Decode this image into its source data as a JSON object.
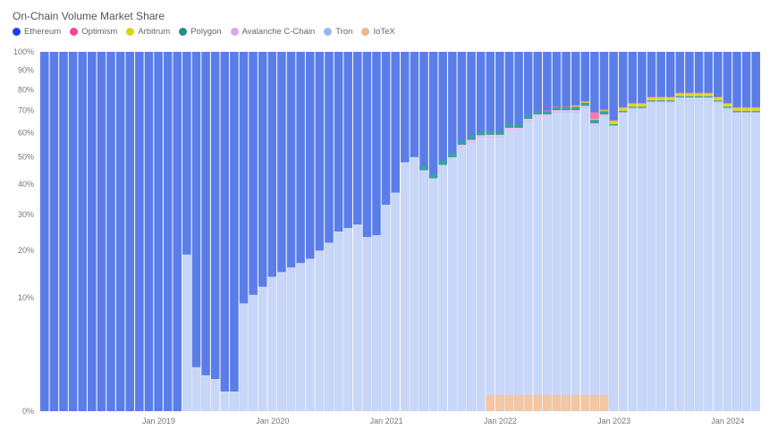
{
  "chart_data": {
    "type": "bar",
    "stacked": true,
    "title": "On-Chain Volume Market Share",
    "y_scale": "sqrt",
    "ylim": [
      0,
      100
    ],
    "y_ticks": [
      "0%",
      "10%",
      "20%",
      "30%",
      "40%",
      "50%",
      "60%",
      "70%",
      "80%",
      "90%",
      "100%"
    ],
    "x_ticks": [
      {
        "label": "Jan 2019",
        "month": "2019-01"
      },
      {
        "label": "Jan 2020",
        "month": "2020-01"
      },
      {
        "label": "Jan 2021",
        "month": "2021-01"
      },
      {
        "label": "Jan 2022",
        "month": "2022-01"
      },
      {
        "label": "Jan 2023",
        "month": "2023-01"
      },
      {
        "label": "Jan 2024",
        "month": "2024-01"
      }
    ],
    "grid": false,
    "legend_position": "top-left",
    "x": [
      "2018-01",
      "2018-02",
      "2018-03",
      "2018-04",
      "2018-05",
      "2018-06",
      "2018-07",
      "2018-08",
      "2018-09",
      "2018-10",
      "2018-11",
      "2018-12",
      "2019-01",
      "2019-02",
      "2019-03",
      "2019-04",
      "2019-05",
      "2019-06",
      "2019-07",
      "2019-08",
      "2019-09",
      "2019-10",
      "2019-11",
      "2019-12",
      "2020-01",
      "2020-02",
      "2020-03",
      "2020-04",
      "2020-05",
      "2020-06",
      "2020-07",
      "2020-08",
      "2020-09",
      "2020-10",
      "2020-11",
      "2020-12",
      "2021-01",
      "2021-02",
      "2021-03",
      "2021-04",
      "2021-05",
      "2021-06",
      "2021-07",
      "2021-08",
      "2021-09",
      "2021-10",
      "2021-11",
      "2021-12",
      "2022-01",
      "2022-02",
      "2022-03",
      "2022-04",
      "2022-05",
      "2022-06",
      "2022-07",
      "2022-08",
      "2022-09",
      "2022-10",
      "2022-11",
      "2022-12",
      "2023-01",
      "2023-02",
      "2023-03",
      "2023-04",
      "2023-05",
      "2023-06",
      "2023-07",
      "2023-08",
      "2023-09",
      "2023-10",
      "2023-11",
      "2023-12",
      "2024-01",
      "2024-02",
      "2024-03",
      "2024-04"
    ],
    "series": [
      {
        "name": "IoTeX",
        "color": "#f0b48a",
        "bar_color": "#f3c7a3",
        "values": [
          0,
          0,
          0,
          0,
          0,
          0,
          0,
          0,
          0,
          0,
          0,
          0,
          0,
          0,
          0,
          0,
          0,
          0,
          0,
          0,
          0,
          0,
          0,
          0,
          0,
          0,
          0,
          0,
          0,
          0,
          0,
          0,
          0,
          0,
          0,
          0,
          0,
          0,
          0,
          0,
          0,
          0,
          0,
          0,
          0,
          0,
          0,
          0.2,
          0.2,
          0.2,
          0.2,
          0.2,
          0.2,
          0.2,
          0.2,
          0.2,
          0.2,
          0.2,
          0.2,
          0.2,
          0,
          0,
          0,
          0,
          0,
          0,
          0,
          0,
          0,
          0,
          0,
          0,
          0,
          0,
          0,
          0
        ]
      },
      {
        "name": "Tron",
        "color": "#9bb5f2",
        "bar_color": "#c8d7f8",
        "values": [
          0,
          0,
          0,
          0,
          0,
          0,
          0,
          0,
          0,
          0,
          0,
          0,
          0,
          0,
          0,
          19,
          1.5,
          1,
          0.8,
          0.3,
          0.3,
          9,
          10.5,
          12,
          14,
          15,
          16,
          17,
          18,
          20,
          22,
          25,
          26,
          27,
          23.5,
          24,
          33,
          37,
          48,
          50,
          45,
          42,
          47,
          50,
          54,
          56,
          58,
          58,
          58,
          61,
          61,
          65,
          67,
          67,
          69,
          69,
          69,
          71,
          63,
          67,
          63,
          69,
          71,
          71,
          74,
          74,
          74,
          76,
          76,
          76,
          76,
          74,
          71,
          69,
          69,
          69
        ]
      },
      {
        "name": "Avalanche C-Chain",
        "color": "#d8a6f0",
        "bar_color": "#e6c4f5",
        "values": [
          0,
          0,
          0,
          0,
          0,
          0,
          0,
          0,
          0,
          0,
          0,
          0,
          0,
          0,
          0,
          0,
          0,
          0,
          0,
          0,
          0,
          0,
          0,
          0,
          0,
          0,
          0,
          0,
          0,
          0,
          0,
          0,
          0,
          0,
          0,
          0,
          0,
          0,
          0,
          0,
          0,
          0,
          0,
          0,
          1,
          1,
          1,
          1,
          1,
          1,
          1,
          1,
          1,
          1,
          1,
          1,
          1,
          1,
          1,
          1,
          0.3,
          0.3,
          0.3,
          0.3,
          0.3,
          0.3,
          0.3,
          0.3,
          0.3,
          0.3,
          0.3,
          0.3,
          0.3,
          0.3,
          0.3,
          0.3
        ]
      },
      {
        "name": "Polygon",
        "color": "#2a8c84",
        "bar_color": "#3aa39a",
        "values": [
          0,
          0,
          0,
          0,
          0,
          0,
          0,
          0,
          0,
          0,
          0,
          0,
          0,
          0,
          0,
          0,
          0,
          0,
          0,
          0,
          0,
          0,
          0,
          0,
          0,
          0,
          0,
          0,
          0,
          0,
          0,
          0,
          0,
          0,
          0,
          0,
          0,
          0,
          0,
          0,
          1.5,
          1.5,
          1.5,
          1.5,
          1.5,
          1.5,
          1.5,
          1.5,
          1.5,
          1.5,
          1.5,
          1.5,
          1.5,
          1.5,
          1.5,
          1.5,
          1.5,
          1.5,
          1.5,
          1.5,
          0.5,
          0.5,
          0.5,
          0.5,
          0.5,
          0.5,
          0.5,
          0.5,
          0.5,
          0.5,
          0.5,
          0.5,
          0.5,
          0.5,
          0.5,
          0.5
        ]
      },
      {
        "name": "Arbitrum",
        "color": "#d6d619",
        "bar_color": "#dada2a",
        "values": [
          0,
          0,
          0,
          0,
          0,
          0,
          0,
          0,
          0,
          0,
          0,
          0,
          0,
          0,
          0,
          0,
          0,
          0,
          0,
          0,
          0,
          0,
          0,
          0,
          0,
          0,
          0,
          0,
          0,
          0,
          0,
          0,
          0,
          0,
          0,
          0,
          0,
          0,
          0,
          0,
          0,
          0,
          0,
          0,
          0,
          0,
          0,
          0,
          0,
          0,
          0,
          0,
          0,
          0,
          0,
          0,
          0.5,
          0.5,
          0.5,
          0.5,
          1.5,
          1.5,
          1.5,
          1.5,
          1.5,
          1.5,
          1.5,
          1.5,
          1.5,
          1.5,
          1.5,
          1.5,
          1.5,
          1.5,
          1.5,
          1.5
        ]
      },
      {
        "name": "Optimism",
        "color": "#f0449a",
        "bar_color": "#f27ab5",
        "values": [
          0,
          0,
          0,
          0,
          0,
          0,
          0,
          0,
          0,
          0,
          0,
          0,
          0,
          0,
          0,
          0,
          0,
          0,
          0,
          0,
          0,
          0,
          0,
          0,
          0,
          0,
          0,
          0,
          0,
          0,
          0,
          0,
          0,
          0,
          0,
          0,
          0,
          0,
          0,
          0,
          0,
          0,
          0,
          0,
          0,
          0,
          0,
          0,
          0,
          0,
          0,
          0,
          0,
          0.3,
          0.3,
          0.3,
          0.3,
          0.3,
          3,
          0.3,
          0.3,
          0.3,
          0.3,
          0.3,
          0.3,
          0.3,
          0.3,
          0.3,
          0.3,
          0.3,
          0.3,
          0.3,
          0.3,
          0.3,
          0.3,
          0.3
        ]
      },
      {
        "name": "Ethereum",
        "color": "#1a3ef0",
        "bar_color": "#5a7de8",
        "values": "remainder"
      }
    ],
    "legend": [
      "Ethereum",
      "Optimism",
      "Arbitrum",
      "Polygon",
      "Avalanche C-Chain",
      "Tron",
      "IoTeX"
    ]
  }
}
